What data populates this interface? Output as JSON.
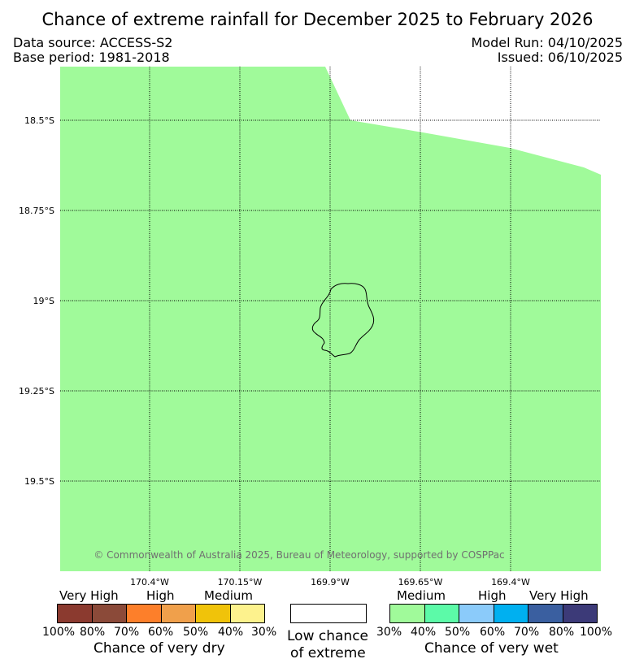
{
  "title": "Chance of extreme rainfall for December 2025 to February 2026",
  "meta": {
    "data_source": "Data source: ACCESS-S2",
    "base_period": "Base period: 1981-2018",
    "model_run": "Model Run: 04/10/2025",
    "issued": "Issued: 06/10/2025"
  },
  "map": {
    "lat_labels": [
      "18.5°S",
      "18.75°S",
      "19°S",
      "19.25°S",
      "19.5°S"
    ],
    "lon_labels": [
      "170.4°W",
      "170.15°W",
      "169.9°W",
      "169.65°W",
      "169.4°W"
    ],
    "fill_color": "#a0fa9a",
    "fill_category": "Chance of very wet: Medium (30%–40%)",
    "copyright": "© Commonwealth of Australia 2025, Bureau of Meteorology, supported by COSPPac"
  },
  "legend": {
    "dry": {
      "levels": [
        "Very High",
        "High",
        "Medium"
      ],
      "colors": [
        "#8b3a2f",
        "#8b4a39",
        "#fd7f2a",
        "#f0a04b",
        "#f0c30a",
        "#fdf28d"
      ],
      "percents": [
        "100%",
        "80%",
        "70%",
        "60%",
        "50%",
        "40%",
        "30%"
      ],
      "caption": "Chance of very dry"
    },
    "low": {
      "color": "#ffffff",
      "caption_line1": "Low chance",
      "caption_line2": "of extreme"
    },
    "wet": {
      "levels": [
        "Medium",
        "High",
        "Very High"
      ],
      "colors": [
        "#a0fa9a",
        "#5cfaa8",
        "#8bcbfa",
        "#00b0f0",
        "#3a5fa0",
        "#3c3a78"
      ],
      "percents": [
        "30%",
        "40%",
        "50%",
        "60%",
        "70%",
        "80%",
        "100%"
      ],
      "caption": "Chance of very wet"
    }
  }
}
